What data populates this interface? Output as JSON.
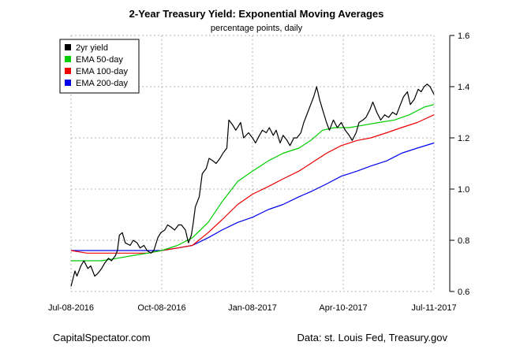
{
  "footer": {
    "left": "CapitalSpectator.com",
    "right": "Data: st. Louis Fed, Treasury.gov"
  },
  "chart_data": {
    "type": "line",
    "title": "2-Year Treasury Yield: Exponential Moving Averages",
    "subtitle": "percentage points, daily",
    "xlabel": "",
    "ylabel": "",
    "x_ticks": [
      "Jul-08-2016",
      "Oct-08-2016",
      "Jan-08-2017",
      "Apr-10-2017",
      "Jul-11-2017"
    ],
    "x_tick_dates": [
      "2016-07-08",
      "2016-10-08",
      "2017-01-08",
      "2017-04-10",
      "2017-07-11"
    ],
    "xlim": [
      "2016-07-08",
      "2017-07-11"
    ],
    "y_ticks": [
      "0.6",
      "0.8",
      "1.0",
      "1.2",
      "1.4",
      "1.6"
    ],
    "ylim": [
      0.6,
      1.6
    ],
    "y_axis_side": "right",
    "grid": true,
    "legend_position": "top-left",
    "series": [
      {
        "name": "2yr yield",
        "color": "#000000",
        "points": [
          [
            "2016-07-08",
            0.62
          ],
          [
            "2016-07-12",
            0.68
          ],
          [
            "2016-07-14",
            0.66
          ],
          [
            "2016-07-18",
            0.7
          ],
          [
            "2016-07-21",
            0.72
          ],
          [
            "2016-07-25",
            0.69
          ],
          [
            "2016-07-28",
            0.7
          ],
          [
            "2016-08-01",
            0.66
          ],
          [
            "2016-08-04",
            0.67
          ],
          [
            "2016-08-08",
            0.69
          ],
          [
            "2016-08-11",
            0.71
          ],
          [
            "2016-08-15",
            0.73
          ],
          [
            "2016-08-18",
            0.72
          ],
          [
            "2016-08-22",
            0.74
          ],
          [
            "2016-08-24",
            0.76
          ],
          [
            "2016-08-26",
            0.82
          ],
          [
            "2016-08-29",
            0.83
          ],
          [
            "2016-09-01",
            0.79
          ],
          [
            "2016-09-06",
            0.78
          ],
          [
            "2016-09-09",
            0.8
          ],
          [
            "2016-09-13",
            0.79
          ],
          [
            "2016-09-16",
            0.77
          ],
          [
            "2016-09-20",
            0.78
          ],
          [
            "2016-09-23",
            0.76
          ],
          [
            "2016-09-27",
            0.75
          ],
          [
            "2016-09-30",
            0.76
          ],
          [
            "2016-10-04",
            0.81
          ],
          [
            "2016-10-07",
            0.83
          ],
          [
            "2016-10-11",
            0.84
          ],
          [
            "2016-10-14",
            0.86
          ],
          [
            "2016-10-18",
            0.85
          ],
          [
            "2016-10-21",
            0.84
          ],
          [
            "2016-10-25",
            0.86
          ],
          [
            "2016-10-28",
            0.86
          ],
          [
            "2016-11-01",
            0.84
          ],
          [
            "2016-11-04",
            0.79
          ],
          [
            "2016-11-07",
            0.82
          ],
          [
            "2016-11-09",
            0.87
          ],
          [
            "2016-11-11",
            0.93
          ],
          [
            "2016-11-15",
            0.97
          ],
          [
            "2016-11-18",
            1.06
          ],
          [
            "2016-11-22",
            1.08
          ],
          [
            "2016-11-25",
            1.12
          ],
          [
            "2016-11-29",
            1.11
          ],
          [
            "2016-12-02",
            1.1
          ],
          [
            "2016-12-06",
            1.12
          ],
          [
            "2016-12-09",
            1.14
          ],
          [
            "2016-12-13",
            1.16
          ],
          [
            "2016-12-15",
            1.27
          ],
          [
            "2016-12-19",
            1.25
          ],
          [
            "2016-12-22",
            1.23
          ],
          [
            "2016-12-27",
            1.26
          ],
          [
            "2016-12-30",
            1.2
          ],
          [
            "2017-01-04",
            1.22
          ],
          [
            "2017-01-08",
            1.2
          ],
          [
            "2017-01-11",
            1.18
          ],
          [
            "2017-01-15",
            1.21
          ],
          [
            "2017-01-18",
            1.23
          ],
          [
            "2017-01-22",
            1.22
          ],
          [
            "2017-01-25",
            1.24
          ],
          [
            "2017-01-29",
            1.21
          ],
          [
            "2017-02-01",
            1.23
          ],
          [
            "2017-02-05",
            1.18
          ],
          [
            "2017-02-08",
            1.21
          ],
          [
            "2017-02-12",
            1.19
          ],
          [
            "2017-02-15",
            1.17
          ],
          [
            "2017-02-19",
            1.2
          ],
          [
            "2017-02-22",
            1.2
          ],
          [
            "2017-02-26",
            1.22
          ],
          [
            "2017-03-01",
            1.26
          ],
          [
            "2017-03-05",
            1.3
          ],
          [
            "2017-03-08",
            1.33
          ],
          [
            "2017-03-11",
            1.36
          ],
          [
            "2017-03-14",
            1.4
          ],
          [
            "2017-03-17",
            1.35
          ],
          [
            "2017-03-20",
            1.31
          ],
          [
            "2017-03-24",
            1.26
          ],
          [
            "2017-03-27",
            1.23
          ],
          [
            "2017-03-31",
            1.27
          ],
          [
            "2017-04-04",
            1.24
          ],
          [
            "2017-04-08",
            1.26
          ],
          [
            "2017-04-12",
            1.23
          ],
          [
            "2017-04-16",
            1.21
          ],
          [
            "2017-04-19",
            1.19
          ],
          [
            "2017-04-23",
            1.22
          ],
          [
            "2017-04-26",
            1.26
          ],
          [
            "2017-04-30",
            1.27
          ],
          [
            "2017-05-03",
            1.28
          ],
          [
            "2017-05-07",
            1.31
          ],
          [
            "2017-05-10",
            1.34
          ],
          [
            "2017-05-14",
            1.3
          ],
          [
            "2017-05-18",
            1.27
          ],
          [
            "2017-05-22",
            1.29
          ],
          [
            "2017-05-26",
            1.28
          ],
          [
            "2017-05-30",
            1.3
          ],
          [
            "2017-06-03",
            1.29
          ],
          [
            "2017-06-07",
            1.33
          ],
          [
            "2017-06-10",
            1.36
          ],
          [
            "2017-06-14",
            1.38
          ],
          [
            "2017-06-17",
            1.33
          ],
          [
            "2017-06-21",
            1.35
          ],
          [
            "2017-06-25",
            1.39
          ],
          [
            "2017-06-28",
            1.38
          ],
          [
            "2017-07-01",
            1.4
          ],
          [
            "2017-07-04",
            1.41
          ],
          [
            "2017-07-07",
            1.4
          ],
          [
            "2017-07-11",
            1.37
          ]
        ]
      },
      {
        "name": "EMA 50-day",
        "color": "#00cc00",
        "points": [
          [
            "2016-07-08",
            0.72
          ],
          [
            "2016-07-22",
            0.72
          ],
          [
            "2016-08-08",
            0.72
          ],
          [
            "2016-08-24",
            0.73
          ],
          [
            "2016-09-08",
            0.74
          ],
          [
            "2016-09-24",
            0.75
          ],
          [
            "2016-10-08",
            0.76
          ],
          [
            "2016-10-24",
            0.78
          ],
          [
            "2016-11-08",
            0.81
          ],
          [
            "2016-11-24",
            0.87
          ],
          [
            "2016-12-08",
            0.95
          ],
          [
            "2016-12-24",
            1.03
          ],
          [
            "2017-01-08",
            1.07
          ],
          [
            "2017-01-24",
            1.11
          ],
          [
            "2017-02-08",
            1.14
          ],
          [
            "2017-02-24",
            1.16
          ],
          [
            "2017-03-08",
            1.19
          ],
          [
            "2017-03-20",
            1.23
          ],
          [
            "2017-04-01",
            1.24
          ],
          [
            "2017-04-16",
            1.24
          ],
          [
            "2017-05-01",
            1.25
          ],
          [
            "2017-05-16",
            1.26
          ],
          [
            "2017-06-01",
            1.27
          ],
          [
            "2017-06-16",
            1.29
          ],
          [
            "2017-07-01",
            1.32
          ],
          [
            "2017-07-11",
            1.33
          ]
        ]
      },
      {
        "name": "EMA 100-day",
        "color": "#ee0000",
        "points": [
          [
            "2016-07-08",
            0.76
          ],
          [
            "2016-07-24",
            0.75
          ],
          [
            "2016-08-08",
            0.75
          ],
          [
            "2016-08-24",
            0.75
          ],
          [
            "2016-09-08",
            0.75
          ],
          [
            "2016-09-24",
            0.75
          ],
          [
            "2016-10-08",
            0.76
          ],
          [
            "2016-10-24",
            0.77
          ],
          [
            "2016-11-08",
            0.78
          ],
          [
            "2016-11-24",
            0.83
          ],
          [
            "2016-12-08",
            0.88
          ],
          [
            "2016-12-24",
            0.94
          ],
          [
            "2017-01-08",
            0.98
          ],
          [
            "2017-01-24",
            1.01
          ],
          [
            "2017-02-08",
            1.04
          ],
          [
            "2017-02-24",
            1.07
          ],
          [
            "2017-03-08",
            1.1
          ],
          [
            "2017-03-24",
            1.14
          ],
          [
            "2017-04-08",
            1.17
          ],
          [
            "2017-04-24",
            1.19
          ],
          [
            "2017-05-08",
            1.2
          ],
          [
            "2017-05-24",
            1.22
          ],
          [
            "2017-06-08",
            1.24
          ],
          [
            "2017-06-24",
            1.26
          ],
          [
            "2017-07-11",
            1.29
          ]
        ]
      },
      {
        "name": "EMA 200-day",
        "color": "#0000ee",
        "points": [
          [
            "2016-07-08",
            0.76
          ],
          [
            "2016-07-24",
            0.76
          ],
          [
            "2016-08-08",
            0.76
          ],
          [
            "2016-08-24",
            0.76
          ],
          [
            "2016-09-08",
            0.76
          ],
          [
            "2016-09-24",
            0.76
          ],
          [
            "2016-10-08",
            0.76
          ],
          [
            "2016-10-24",
            0.77
          ],
          [
            "2016-11-08",
            0.78
          ],
          [
            "2016-11-24",
            0.81
          ],
          [
            "2016-12-08",
            0.84
          ],
          [
            "2016-12-24",
            0.87
          ],
          [
            "2017-01-08",
            0.89
          ],
          [
            "2017-01-24",
            0.92
          ],
          [
            "2017-02-08",
            0.94
          ],
          [
            "2017-02-24",
            0.97
          ],
          [
            "2017-03-08",
            0.99
          ],
          [
            "2017-03-24",
            1.02
          ],
          [
            "2017-04-08",
            1.05
          ],
          [
            "2017-04-24",
            1.07
          ],
          [
            "2017-05-08",
            1.09
          ],
          [
            "2017-05-24",
            1.11
          ],
          [
            "2017-06-08",
            1.14
          ],
          [
            "2017-06-24",
            1.16
          ],
          [
            "2017-07-11",
            1.18
          ]
        ]
      }
    ]
  }
}
